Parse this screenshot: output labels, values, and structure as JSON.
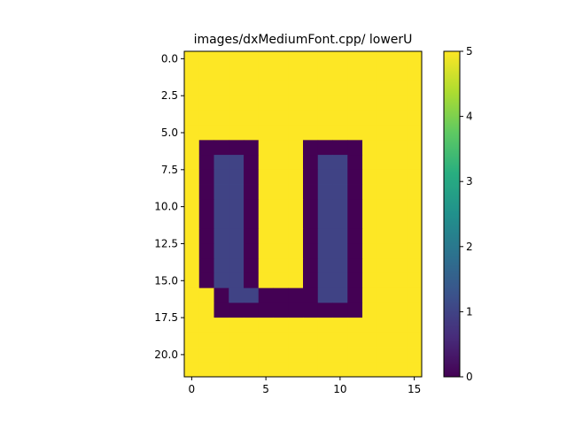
{
  "chart_data": {
    "type": "heatmap",
    "title": "images/dxMediumFont.cpp/ lowerU",
    "xlabel": "",
    "ylabel": "",
    "colormap": "viridis",
    "x_ticks": [
      "0",
      "5",
      "10",
      "15"
    ],
    "y_ticks": [
      "0.0",
      "2.5",
      "5.0",
      "7.5",
      "10.0",
      "12.5",
      "15.0",
      "17.5",
      "20.0"
    ],
    "colorbar": {
      "vmin": 0,
      "vmax": 5,
      "ticks": [
        "0",
        "1",
        "2",
        "3",
        "4",
        "5"
      ]
    },
    "rows": 22,
    "cols": 16,
    "values": [
      [
        5,
        5,
        5,
        5,
        5,
        5,
        5,
        5,
        5,
        5,
        5,
        5,
        5,
        5,
        5,
        5
      ],
      [
        5,
        5,
        5,
        5,
        5,
        5,
        5,
        5,
        5,
        5,
        5,
        5,
        5,
        5,
        5,
        5
      ],
      [
        5,
        5,
        5,
        5,
        5,
        5,
        5,
        5,
        5,
        5,
        5,
        5,
        5,
        5,
        5,
        5
      ],
      [
        5,
        5,
        5,
        5,
        5,
        5,
        5,
        5,
        5,
        5,
        5,
        5,
        5,
        5,
        5,
        5
      ],
      [
        5,
        5,
        5,
        5,
        5,
        5,
        5,
        5,
        5,
        5,
        5,
        5,
        5,
        5,
        5,
        5
      ],
      [
        5,
        5,
        5,
        5,
        5,
        5,
        5,
        5,
        5,
        5,
        5,
        5,
        5,
        5,
        5,
        5
      ],
      [
        5,
        0,
        0,
        0,
        0,
        5,
        5,
        5,
        0,
        0,
        0,
        0,
        5,
        5,
        5,
        5
      ],
      [
        5,
        0,
        1,
        1,
        0,
        5,
        5,
        5,
        0,
        1,
        1,
        0,
        5,
        5,
        5,
        5
      ],
      [
        5,
        0,
        1,
        1,
        0,
        5,
        5,
        5,
        0,
        1,
        1,
        0,
        5,
        5,
        5,
        5
      ],
      [
        5,
        0,
        1,
        1,
        0,
        5,
        5,
        5,
        0,
        1,
        1,
        0,
        5,
        5,
        5,
        5
      ],
      [
        5,
        0,
        1,
        1,
        0,
        5,
        5,
        5,
        0,
        1,
        1,
        0,
        5,
        5,
        5,
        5
      ],
      [
        5,
        0,
        1,
        1,
        0,
        5,
        5,
        5,
        0,
        1,
        1,
        0,
        5,
        5,
        5,
        5
      ],
      [
        5,
        0,
        1,
        1,
        0,
        5,
        5,
        5,
        0,
        1,
        1,
        0,
        5,
        5,
        5,
        5
      ],
      [
        5,
        0,
        1,
        1,
        0,
        5,
        5,
        5,
        0,
        1,
        1,
        0,
        5,
        5,
        5,
        5
      ],
      [
        5,
        0,
        1,
        1,
        0,
        5,
        5,
        5,
        0,
        1,
        1,
        0,
        5,
        5,
        5,
        5
      ],
      [
        5,
        0,
        1,
        1,
        0,
        5,
        5,
        5,
        0,
        1,
        1,
        0,
        5,
        5,
        5,
        5
      ],
      [
        5,
        5,
        0,
        1,
        1,
        0,
        0,
        0,
        0,
        1,
        1,
        0,
        5,
        5,
        5,
        5
      ],
      [
        5,
        5,
        0,
        0,
        0,
        0,
        0,
        0,
        0,
        0,
        0,
        0,
        5,
        5,
        5,
        5
      ],
      [
        5,
        5,
        5,
        5,
        5,
        5,
        5,
        5,
        5,
        5,
        5,
        5,
        5,
        5,
        5,
        5
      ],
      [
        5,
        5,
        5,
        5,
        5,
        5,
        5,
        5,
        5,
        5,
        5,
        5,
        5,
        5,
        5,
        5
      ],
      [
        5,
        5,
        5,
        5,
        5,
        5,
        5,
        5,
        5,
        5,
        5,
        5,
        5,
        5,
        5,
        5
      ],
      [
        5,
        5,
        5,
        5,
        5,
        5,
        5,
        5,
        5,
        5,
        5,
        5,
        5,
        5,
        5,
        5
      ]
    ]
  }
}
